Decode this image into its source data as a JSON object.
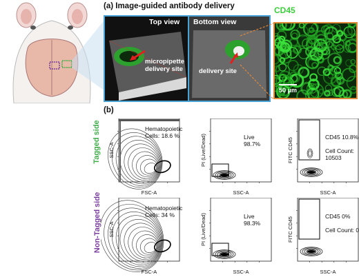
{
  "panel_a": {
    "title": "(a) Image-guided antibody delivery",
    "top_view_label": "Top view",
    "bottom_view_label": "Bottom view",
    "micropipette_label": "micropipette\ndelivery site",
    "delivery_label": "delivery site",
    "cd45_label": "CD45",
    "scale_bar_label": "50 μm",
    "colors": {
      "border": "#4aa3d6",
      "orange": "#e08a3c",
      "green": "#3dcc3d"
    }
  },
  "panel_b": {
    "title": "(b)",
    "rows": [
      {
        "side_label": "Tagged side",
        "side_color": "#3fae49",
        "plots": [
          {
            "ylabel": "SSC-A",
            "xlabel": "FSC-A",
            "annotation": [
              "Hematopoietic",
              "Cells: 18.6 %"
            ]
          },
          {
            "ylabel": "PI (Live/Dead)",
            "xlabel": "SSC-A",
            "annotation": [
              "Live",
              "98.7%"
            ]
          },
          {
            "ylabel": "FITC CD45",
            "xlabel": "SSC-A",
            "annotation": [
              "CD45 10.8%",
              "",
              "Cell Count:",
              "10503"
            ]
          }
        ]
      },
      {
        "side_label": "Non-Tagged side",
        "side_color": "#7a3f9c",
        "plots": [
          {
            "ylabel": "SSC-A",
            "xlabel": "FSC-A",
            "annotation": [
              "Hematopoietic",
              "Cells: 34 %"
            ]
          },
          {
            "ylabel": "PI (Live/Dead)",
            "xlabel": "SSC-A",
            "annotation": [
              "Live",
              "98.3%"
            ]
          },
          {
            "ylabel": "FITC CD45",
            "xlabel": "SSC-A",
            "annotation": [
              "CD45 0%",
              "",
              "Cell Count: 0"
            ]
          }
        ]
      }
    ]
  }
}
